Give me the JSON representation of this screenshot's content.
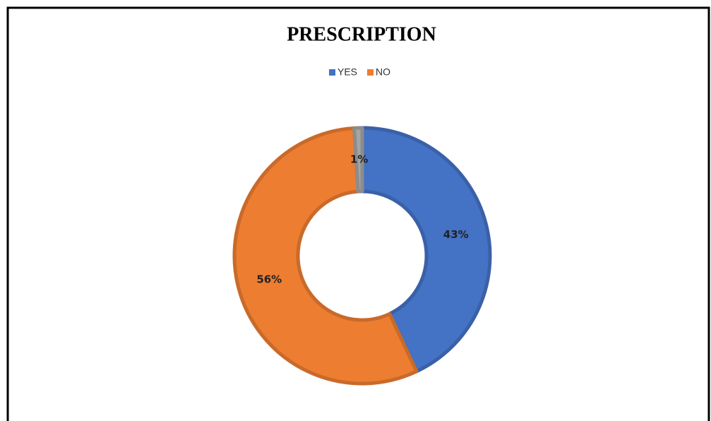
{
  "chart_data": {
    "type": "donut",
    "title": "PRESCRIPTION",
    "categories": [
      "YES",
      "NO",
      null
    ],
    "values": [
      43,
      56,
      1
    ],
    "value_labels": [
      "43%",
      "56%",
      "1%"
    ],
    "colors": [
      "#4472c4",
      "#ed7d31",
      "#a5a5a5"
    ],
    "legend": "top"
  }
}
